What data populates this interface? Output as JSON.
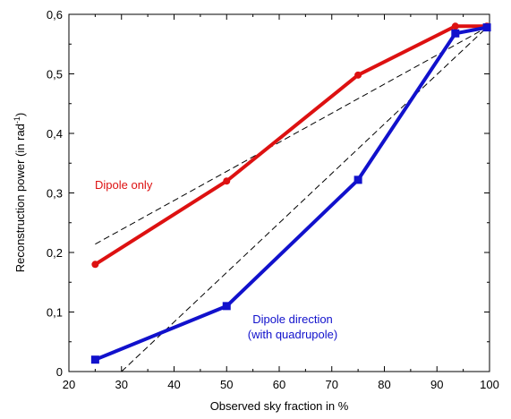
{
  "chart_data": {
    "type": "line",
    "xlabel": "Observed sky fraction in %",
    "ylabel_main": "Reconstruction power (in rad",
    "ylabel_sup": "-1",
    "ylabel_end": ")",
    "xlim": [
      20,
      100
    ],
    "ylim": [
      0,
      0.6
    ],
    "x_ticks": [
      20,
      30,
      40,
      50,
      60,
      70,
      80,
      90,
      100
    ],
    "x_tick_labels": [
      "20",
      "30",
      "40",
      "50",
      "60",
      "70",
      "80",
      "90",
      "100"
    ],
    "y_ticks": [
      0,
      0.1,
      0.2,
      0.3,
      0.4,
      0.5,
      0.6
    ],
    "y_tick_labels": [
      "0",
      "0,1",
      "0,2",
      "0,3",
      "0,4",
      "0,5",
      "0,6"
    ],
    "grid": false,
    "legend": "none",
    "series": [
      {
        "name": "Dipole only",
        "color": "#dd1111",
        "marker": "circle",
        "x": [
          25,
          50,
          75,
          93.5,
          99.5
        ],
        "y": [
          0.18,
          0.32,
          0.498,
          0.58,
          0.58
        ]
      },
      {
        "name": "Dipole direction (with quadrupole)",
        "color": "#1111cc",
        "marker": "square",
        "x": [
          25,
          50,
          75,
          93.5,
          99.5
        ],
        "y": [
          0.02,
          0.11,
          0.322,
          0.568,
          0.578
        ]
      }
    ],
    "fit_lines": [
      {
        "x": [
          25,
          99.5
        ],
        "y": [
          0.214,
          0.578
        ]
      },
      {
        "x": [
          30,
          99.5
        ],
        "y": [
          0.0,
          0.578
        ]
      }
    ],
    "annotations": [
      {
        "text": "Dipole only",
        "color": "#dd1111"
      },
      {
        "text": "Dipole direction",
        "color": "#1111cc"
      },
      {
        "text": "(with quadrupole)",
        "color": "#1111cc"
      }
    ]
  }
}
